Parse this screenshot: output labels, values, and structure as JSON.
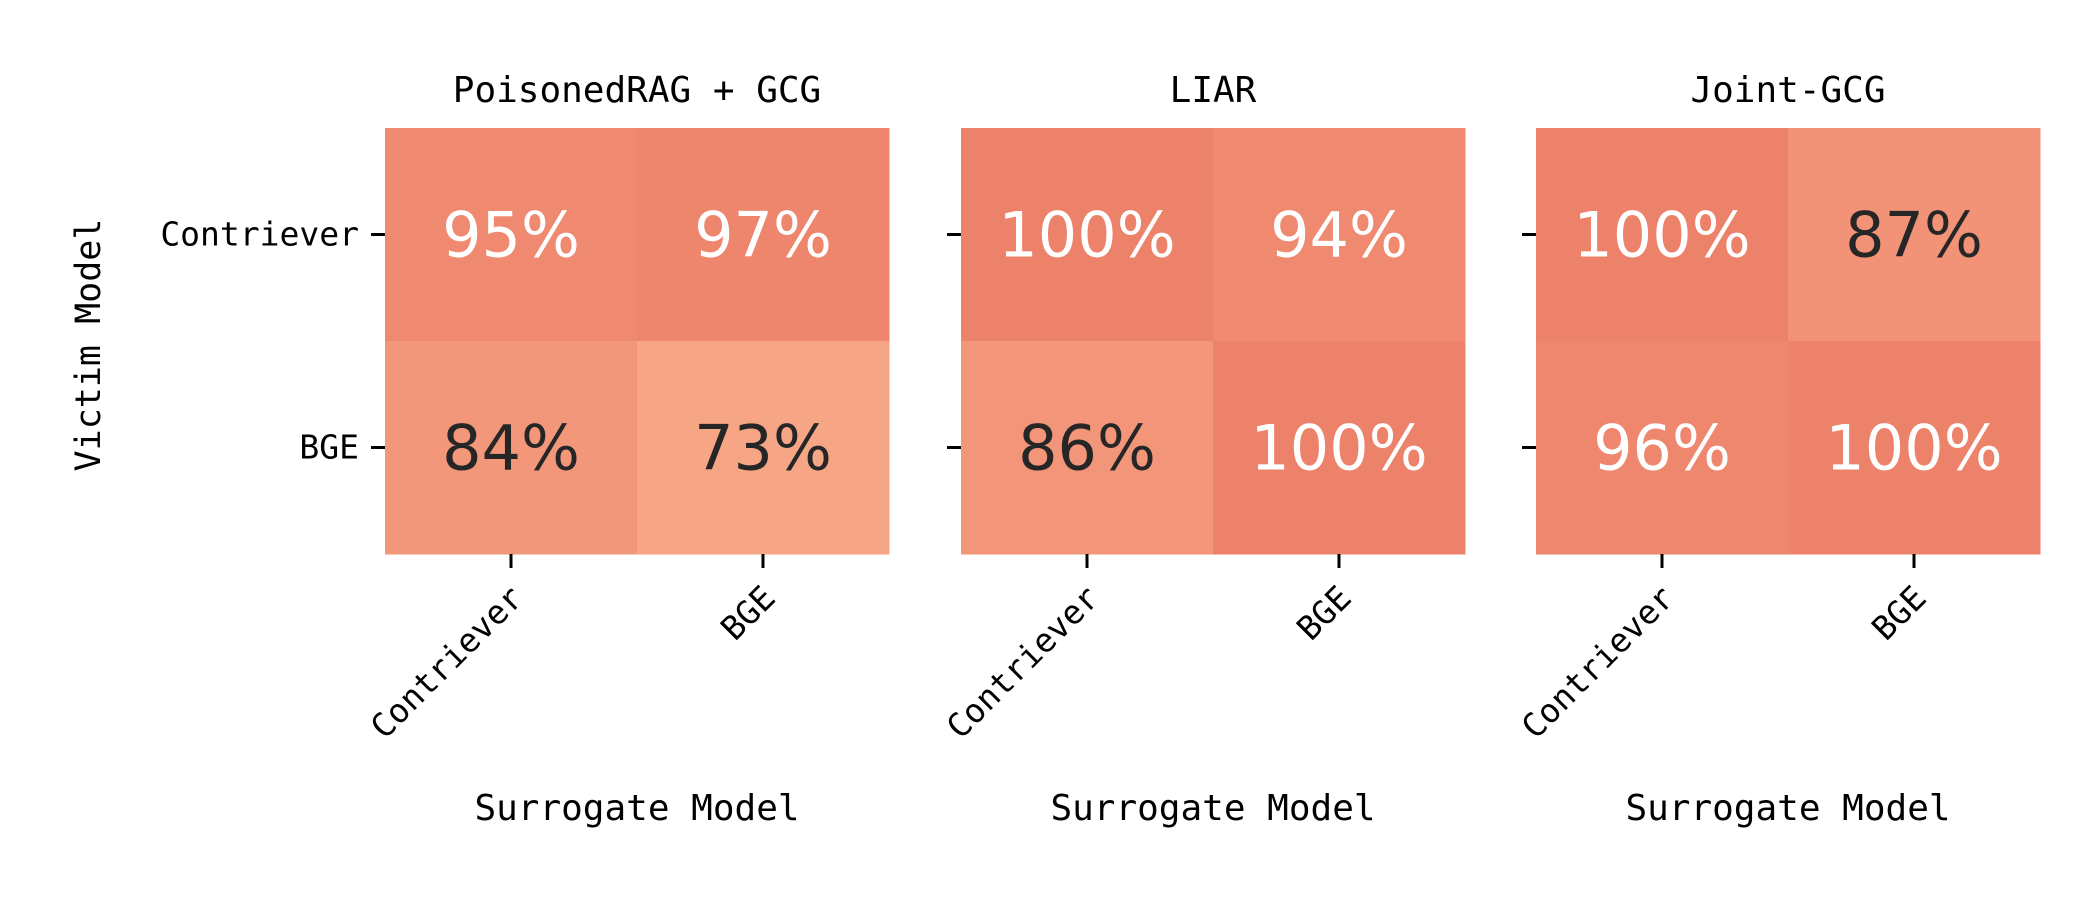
{
  "chart_data": [
    {
      "type": "heatmap",
      "title": "PoisonedRAG + GCG",
      "xlabel": "Surrogate Model",
      "ylabel": "Victim Model",
      "x_categories": [
        "Contriever",
        "BGE"
      ],
      "y_categories": [
        "Contriever",
        "BGE"
      ],
      "values": [
        [
          95,
          97
        ],
        [
          84,
          73
        ]
      ],
      "labels": [
        [
          "95%",
          "97%"
        ],
        [
          "84%",
          "73%"
        ]
      ],
      "value_unit": "%"
    },
    {
      "type": "heatmap",
      "title": "LIAR",
      "xlabel": "Surrogate Model",
      "ylabel": "",
      "x_categories": [
        "Contriever",
        "BGE"
      ],
      "y_categories": [
        "Contriever",
        "BGE"
      ],
      "values": [
        [
          100,
          94
        ],
        [
          86,
          100
        ]
      ],
      "labels": [
        [
          "100%",
          "94%"
        ],
        [
          "86%",
          "100%"
        ]
      ],
      "value_unit": "%"
    },
    {
      "type": "heatmap",
      "title": "Joint-GCG",
      "xlabel": "Surrogate Model",
      "ylabel": "",
      "x_categories": [
        "Contriever",
        "BGE"
      ],
      "y_categories": [
        "Contriever",
        "BGE"
      ],
      "values": [
        [
          100,
          87
        ],
        [
          96,
          100
        ]
      ],
      "labels": [
        [
          "100%",
          "87%"
        ],
        [
          "96%",
          "100%"
        ]
      ],
      "value_unit": "%"
    }
  ],
  "colors": {
    "cell_low": "#f8aa88",
    "cell_high": "#ed826a",
    "text_light": "#ffffff",
    "text_dark": "#262626",
    "axis": "#000000"
  }
}
